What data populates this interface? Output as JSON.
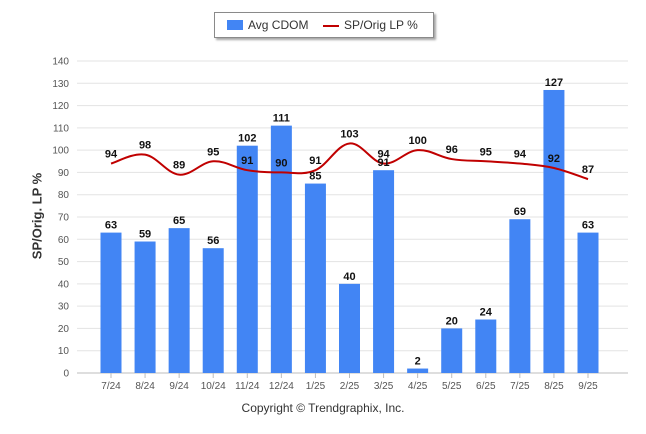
{
  "legend": {
    "bar_label": "Avg CDOM",
    "line_label": "SP/Orig LP %"
  },
  "footer": {
    "copyright": "Copyright © Trendgraphix, Inc."
  },
  "colors": {
    "bar": "#4285f4",
    "line": "#c00000",
    "grid": "#e3e3e3",
    "axis_text": "#555555"
  },
  "chart_data": {
    "type": "bar",
    "title": "",
    "xlabel": "",
    "ylabel": "SP/Orig. LP %",
    "ylim": [
      0,
      140
    ],
    "yticks": [
      0,
      10,
      20,
      30,
      40,
      50,
      60,
      70,
      80,
      90,
      100,
      110,
      120,
      130,
      140
    ],
    "categories": [
      "7/24",
      "8/24",
      "9/24",
      "10/24",
      "11/24",
      "12/24",
      "1/25",
      "2/25",
      "3/25",
      "4/25",
      "5/25",
      "6/25",
      "7/25",
      "8/25",
      "9/25"
    ],
    "series": [
      {
        "name": "Avg CDOM",
        "type": "bar",
        "values": [
          63,
          59,
          65,
          56,
          102,
          111,
          85,
          40,
          91,
          2,
          20,
          24,
          69,
          127,
          63
        ]
      },
      {
        "name": "SP/Orig LP %",
        "type": "line",
        "values": [
          94,
          98,
          89,
          95,
          91,
          90,
          91,
          103,
          94,
          100,
          96,
          95,
          94,
          92,
          87
        ]
      }
    ]
  }
}
